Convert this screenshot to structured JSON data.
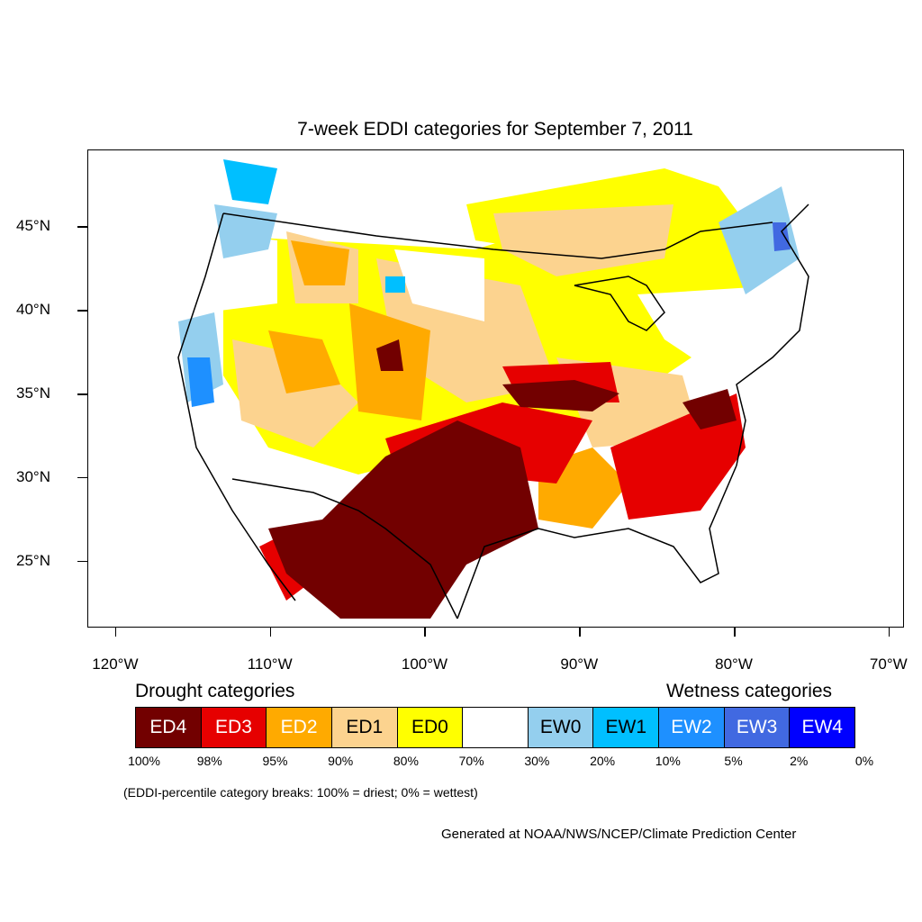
{
  "title": "7-week EDDI categories for September 7, 2011",
  "y_axis": {
    "labels": [
      "45°N",
      "40°N",
      "35°N",
      "30°N",
      "25°N"
    ],
    "values": [
      45,
      40,
      35,
      30,
      25
    ]
  },
  "x_axis": {
    "labels": [
      "120°W",
      "110°W",
      "100°W",
      "90°W",
      "80°W",
      "70°W"
    ],
    "values": [
      -120,
      -110,
      -100,
      -90,
      -80,
      -70
    ]
  },
  "map_extent": {
    "lon": [
      -121.8,
      -69.0
    ],
    "lat": [
      21.0,
      49.6
    ]
  },
  "legend": {
    "drought_heading": "Drought categories",
    "wetness_heading": "Wetness categories",
    "categories": [
      {
        "label": "ED4",
        "color": "#720000",
        "text_color": "#ffffff"
      },
      {
        "label": "ED3",
        "color": "#e60000",
        "text_color": "#ffffff"
      },
      {
        "label": "ED2",
        "color": "#ffaa00",
        "text_color": "#ffffff"
      },
      {
        "label": "ED1",
        "color": "#fcd38f",
        "text_color": "#000000"
      },
      {
        "label": "ED0",
        "color": "#ffff00",
        "text_color": "#000000"
      },
      {
        "label": "",
        "color": "#ffffff",
        "text_color": "#000000"
      },
      {
        "label": "EW0",
        "color": "#94cfee",
        "text_color": "#000000"
      },
      {
        "label": "EW1",
        "color": "#00bfff",
        "text_color": "#000000"
      },
      {
        "label": "EW2",
        "color": "#1e90ff",
        "text_color": "#ffffff"
      },
      {
        "label": "EW3",
        "color": "#4169e1",
        "text_color": "#ffffff"
      },
      {
        "label": "EW4",
        "color": "#0000ff",
        "text_color": "#ffffff"
      }
    ],
    "breaks": [
      "100%",
      "98%",
      "95%",
      "90%",
      "80%",
      "70%",
      "30%",
      "20%",
      "10%",
      "5%",
      "2%",
      "0%"
    ]
  },
  "note": "(EDDI-percentile category breaks: 100% = driest; 0% = wettest)",
  "credit": "Generated at NOAA/NWS/NCEP/Climate Prediction Center"
}
